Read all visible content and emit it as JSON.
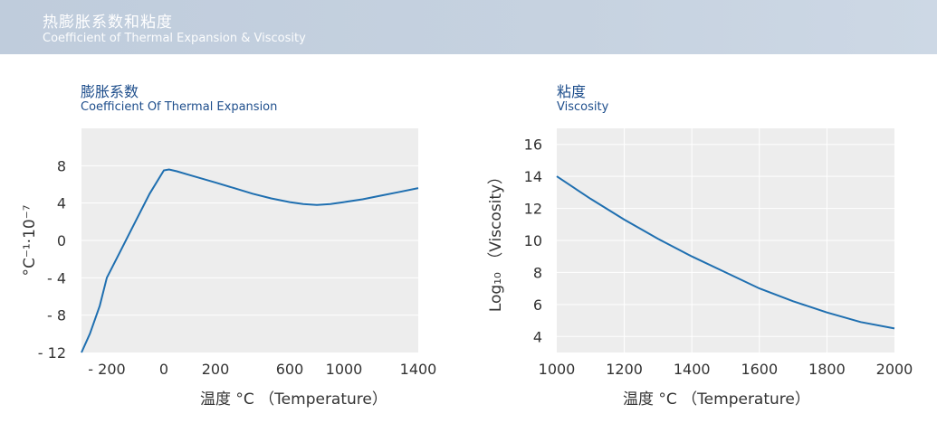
{
  "header": {
    "title_cn": "热膨胀系数和粘度",
    "title_en": "Coefficient of Thermal Expansion & Viscosity"
  },
  "colors": {
    "curve": "#1f6fb0",
    "plot_bg": "#ededed",
    "grid": "#ffffff",
    "title": "#1e4e8c"
  },
  "chart_data": [
    {
      "type": "line",
      "title_cn": "膨胀系数",
      "title_en": "Coefficient  Of  Thermal  Expansion",
      "xlabel": "温度 °C （Temperature）",
      "ylabel": "°C⁻¹·10⁻⁷",
      "x_ticks": [
        -200,
        0,
        200,
        600,
        1000,
        1400
      ],
      "x_tick_labels": [
        "- 200",
        "0",
        "200",
        "600",
        "1000",
        "1400"
      ],
      "y_ticks": [
        -12,
        -8,
        -4,
        0,
        4,
        8
      ],
      "y_tick_labels": [
        "- 12",
        "- 8",
        "- 4",
        "0",
        "4",
        "8"
      ],
      "ylim": [
        -12,
        12
      ],
      "grid": "horizontal",
      "series": [
        {
          "x": [
            -380,
            -320,
            -250,
            -200,
            -150,
            -100,
            -50,
            0,
            20,
            50,
            100,
            200,
            300,
            400,
            500,
            600,
            700,
            800,
            900,
            1000,
            1100,
            1200,
            1300,
            1400
          ],
          "y": [
            -12,
            -10,
            -7,
            -4,
            -1,
            2,
            5,
            7.5,
            7.6,
            7.4,
            7.0,
            6.2,
            5.6,
            5.0,
            4.5,
            4.1,
            3.9,
            3.8,
            3.9,
            4.1,
            4.4,
            4.8,
            5.2,
            5.6
          ]
        }
      ]
    },
    {
      "type": "line",
      "title_cn": "粘度",
      "title_en": "Viscosity",
      "xlabel": "温度 °C （Temperature）",
      "ylabel": "Log₁₀ （Viscosity）",
      "x_ticks": [
        1000,
        1200,
        1400,
        1600,
        1800,
        2000
      ],
      "xlim": [
        1000,
        2000
      ],
      "y_ticks": [
        4,
        6,
        8,
        10,
        12,
        14,
        16
      ],
      "ylim": [
        3,
        17
      ],
      "grid": "both",
      "series": [
        {
          "x": [
            1000,
            1100,
            1200,
            1300,
            1400,
            1500,
            1600,
            1700,
            1800,
            1900,
            2000
          ],
          "y": [
            14.0,
            12.6,
            11.3,
            10.1,
            9.0,
            8.0,
            7.0,
            6.2,
            5.5,
            4.9,
            4.5
          ]
        }
      ]
    }
  ]
}
